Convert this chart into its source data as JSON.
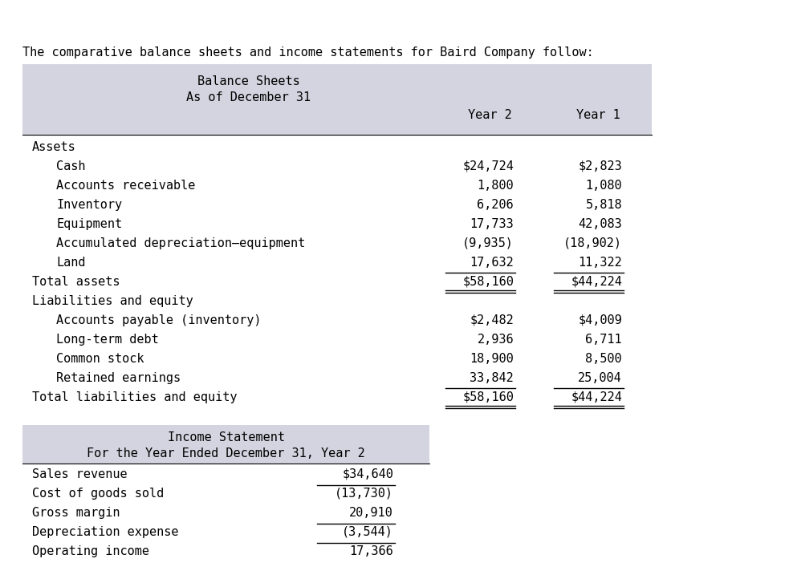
{
  "title_text": "The comparative balance sheets and income statements for Baird Company follow:",
  "bs_header1": "Balance Sheets",
  "bs_header2": "As of December 31",
  "col_year2": "Year 2",
  "col_year1": "Year 1",
  "assets_label": "Assets",
  "assets_rows": [
    [
      "Cash",
      "$24,724",
      "$2,823"
    ],
    [
      "Accounts receivable",
      "1,800",
      "1,080"
    ],
    [
      "Inventory",
      "6,206",
      "5,818"
    ],
    [
      "Equipment",
      "17,733",
      "42,083"
    ],
    [
      "Accumulated depreciation–equipment",
      "(9,935)",
      "(18,902)"
    ],
    [
      "Land",
      "17,632",
      "11,322"
    ]
  ],
  "total_assets_row": [
    "Total assets",
    "$58,160",
    "$44,224"
  ],
  "liab_label": "Liabilities and equity",
  "liab_rows": [
    [
      "Accounts payable (inventory)",
      "$2,482",
      "$4,009"
    ],
    [
      "Long-term debt",
      "2,936",
      "6,711"
    ],
    [
      "Common stock",
      "18,900",
      "8,500"
    ],
    [
      "Retained earnings",
      "33,842",
      "25,004"
    ]
  ],
  "total_liab_row": [
    "Total liabilities and equity",
    "$58,160",
    "$44,224"
  ],
  "is_header1": "Income Statement",
  "is_header2": "For the Year Ended December 31, Year 2",
  "is_rows": [
    [
      "Sales revenue",
      "$34,640",
      "none"
    ],
    [
      "Cost of goods sold",
      "(13,730)",
      "single_above"
    ],
    [
      "Gross margin",
      "20,910",
      "none"
    ],
    [
      "Depreciation expense",
      "(3,544)",
      "single_above"
    ],
    [
      "Operating income",
      "17,366",
      "single_above"
    ]
  ],
  "bg_header": "#d4d4e0",
  "font_family": "DejaVu Sans Mono",
  "font_size": 11,
  "text_color": "#000000"
}
